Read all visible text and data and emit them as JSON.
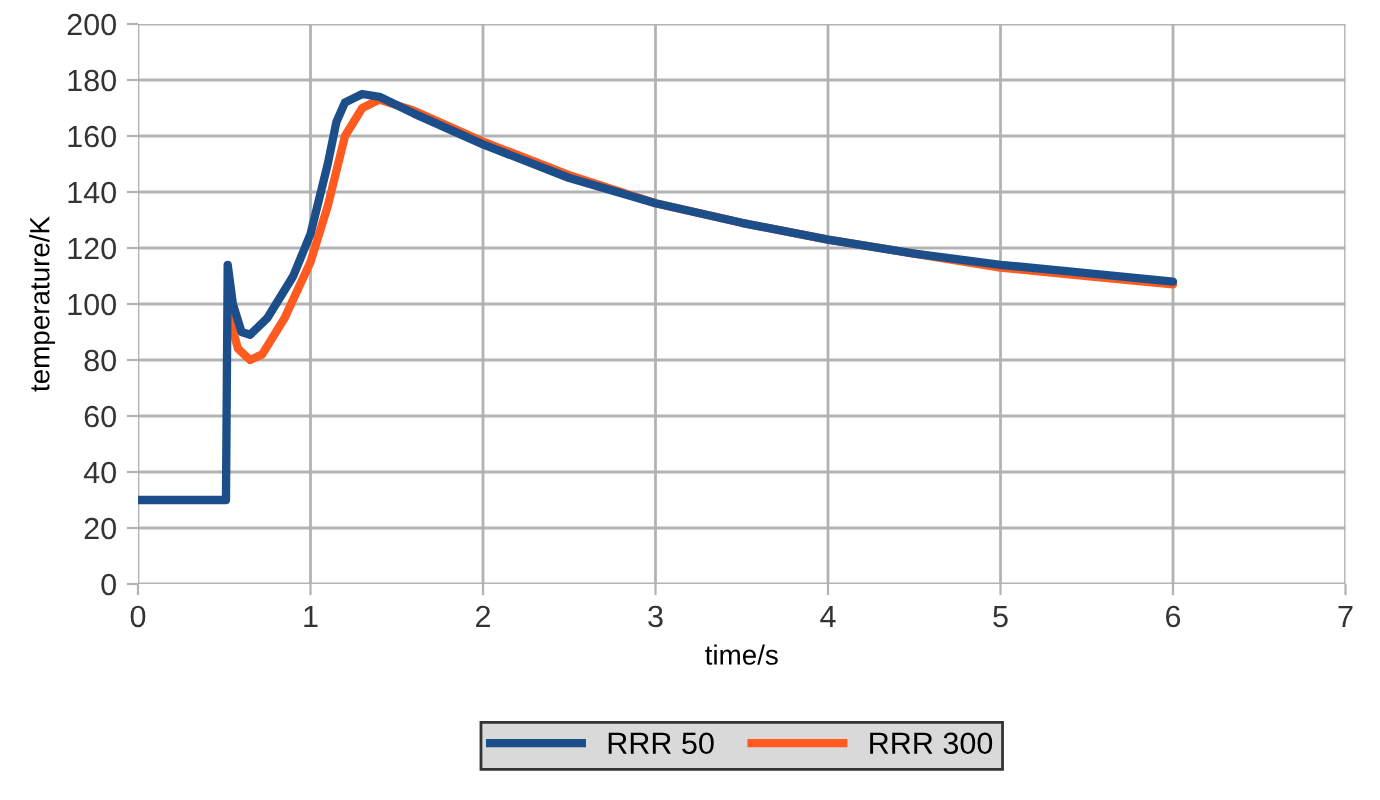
{
  "chart_data": {
    "type": "line",
    "xlabel": "time/s",
    "ylabel": "temperature/K",
    "xlim": [
      0,
      7
    ],
    "xticks": [
      0,
      1,
      2,
      3,
      4,
      5,
      6,
      7
    ],
    "ylim": [
      0,
      200
    ],
    "yticks": [
      0,
      20,
      40,
      60,
      80,
      100,
      120,
      140,
      160,
      180,
      200
    ],
    "grid": true,
    "legend": "bottom",
    "line_style": "solid",
    "series": [
      {
        "name": "RRR 50",
        "color": "#1c4f8a",
        "x": [
          0,
          0.5,
          0.51,
          0.52,
          0.55,
          0.6,
          0.65,
          0.75,
          0.9,
          1.0,
          1.1,
          1.15,
          1.2,
          1.3,
          1.4,
          1.6,
          2,
          2.5,
          3,
          3.5,
          4,
          4.5,
          5,
          5.5,
          6
        ],
        "values": [
          30,
          30,
          30,
          114,
          100,
          90,
          89,
          95,
          110,
          125,
          150,
          165,
          172,
          175,
          174,
          168,
          157,
          145,
          136,
          129,
          123,
          118,
          114,
          111,
          108
        ]
      },
      {
        "name": "RRR 300",
        "color": "#ff5a1f",
        "x": [
          0.53,
          0.58,
          0.65,
          0.72,
          0.85,
          1.0,
          1.1,
          1.2,
          1.3,
          1.4,
          1.6,
          2,
          2.5,
          3,
          3.5,
          4,
          4.5,
          5,
          5.5,
          6
        ],
        "values": [
          95,
          84,
          80,
          82,
          95,
          115,
          135,
          160,
          170,
          173,
          169,
          158,
          146,
          136,
          129,
          123,
          118,
          113,
          110,
          107
        ]
      }
    ]
  }
}
